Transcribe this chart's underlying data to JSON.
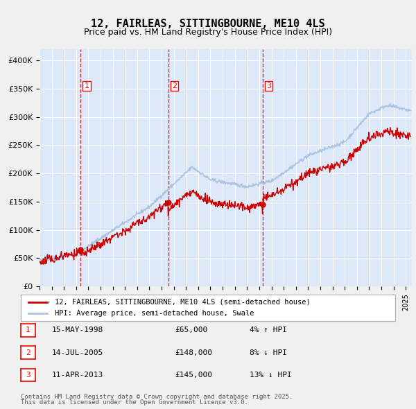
{
  "title": "12, FAIRLEAS, SITTINGBOURNE, ME10 4LS",
  "subtitle": "Price paid vs. HM Land Registry's House Price Index (HPI)",
  "legend_line1": "12, FAIRLEAS, SITTINGBOURNE, ME10 4LS (semi-detached house)",
  "legend_line2": "HPI: Average price, semi-detached house, Swale",
  "footer1": "Contains HM Land Registry data © Crown copyright and database right 2025.",
  "footer2": "This data is licensed under the Open Government Licence v3.0.",
  "transactions": [
    {
      "num": 1,
      "date": "15-MAY-1998",
      "price": 65000,
      "hpi_pct": "4%",
      "direction": "↑"
    },
    {
      "num": 2,
      "date": "14-JUL-2005",
      "price": 148000,
      "hpi_pct": "8%",
      "direction": "↓"
    },
    {
      "num": 3,
      "date": "11-APR-2013",
      "price": 145000,
      "hpi_pct": "13%",
      "direction": "↓"
    }
  ],
  "transaction_dates_decimal": [
    1998.37,
    2005.54,
    2013.28
  ],
  "transaction_prices": [
    65000,
    148000,
    145000
  ],
  "ylim": [
    0,
    420000
  ],
  "yticks": [
    0,
    50000,
    100000,
    150000,
    200000,
    250000,
    300000,
    350000,
    400000
  ],
  "ytick_labels": [
    "£0",
    "£50K",
    "£100K",
    "£150K",
    "£200K",
    "£250K",
    "£300K",
    "£350K",
    "£400K"
  ],
  "xlim_start": 1995.0,
  "xlim_end": 2025.5,
  "background_color": "#dde8f8",
  "plot_bg_color": "#dde8f8",
  "line_color_red": "#cc0000",
  "line_color_blue": "#aac4e0",
  "grid_color": "#ffffff",
  "dashed_line_color": "#cc0000"
}
